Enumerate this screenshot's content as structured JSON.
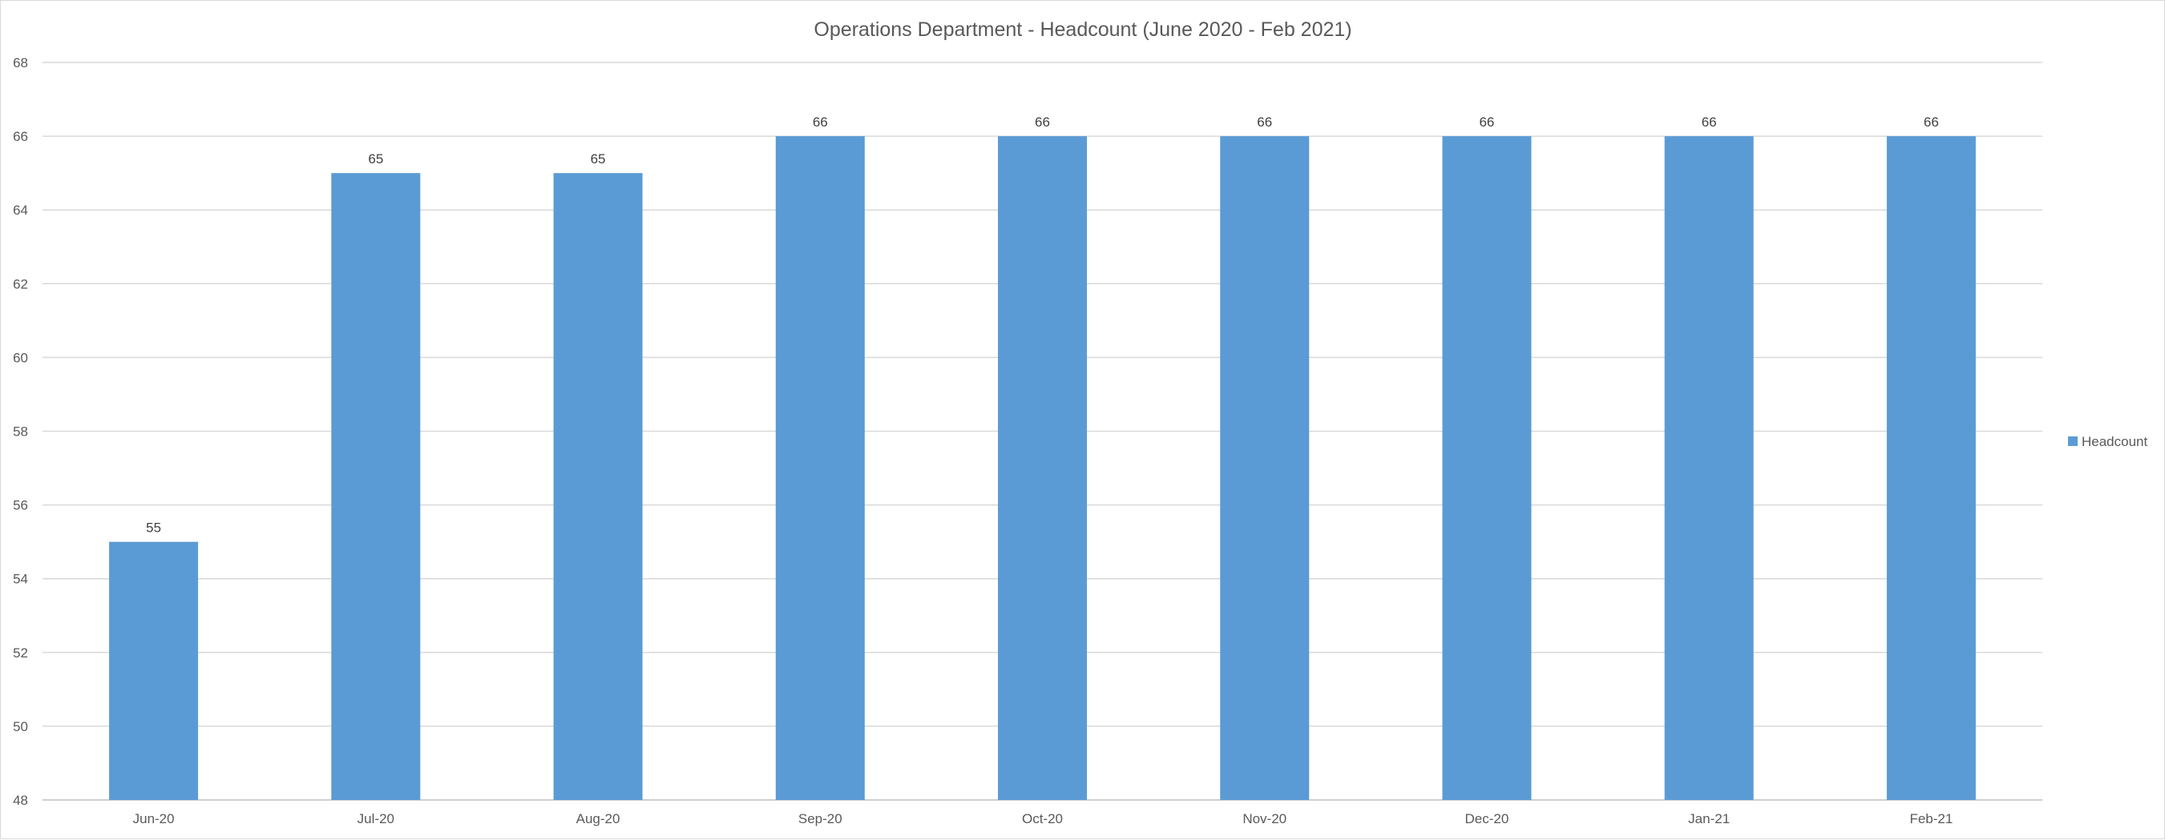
{
  "chart_data": {
    "type": "bar",
    "title": "Operations Department - Headcount (June 2020 - Feb 2021)",
    "categories": [
      "Jun-20",
      "Jul-20",
      "Aug-20",
      "Sep-20",
      "Oct-20",
      "Nov-20",
      "Dec-20",
      "Jan-21",
      "Feb-21"
    ],
    "series": [
      {
        "name": "Headcount",
        "values": [
          55,
          65,
          65,
          66,
          66,
          66,
          66,
          66,
          66
        ],
        "color": "#5b9bd5"
      }
    ],
    "ylim": [
      48,
      68
    ],
    "yticks": [
      48,
      50,
      52,
      54,
      56,
      58,
      60,
      62,
      64,
      66,
      68
    ],
    "xlabel": "",
    "ylabel": "",
    "grid": true,
    "legend": "right",
    "data_labels": true
  }
}
